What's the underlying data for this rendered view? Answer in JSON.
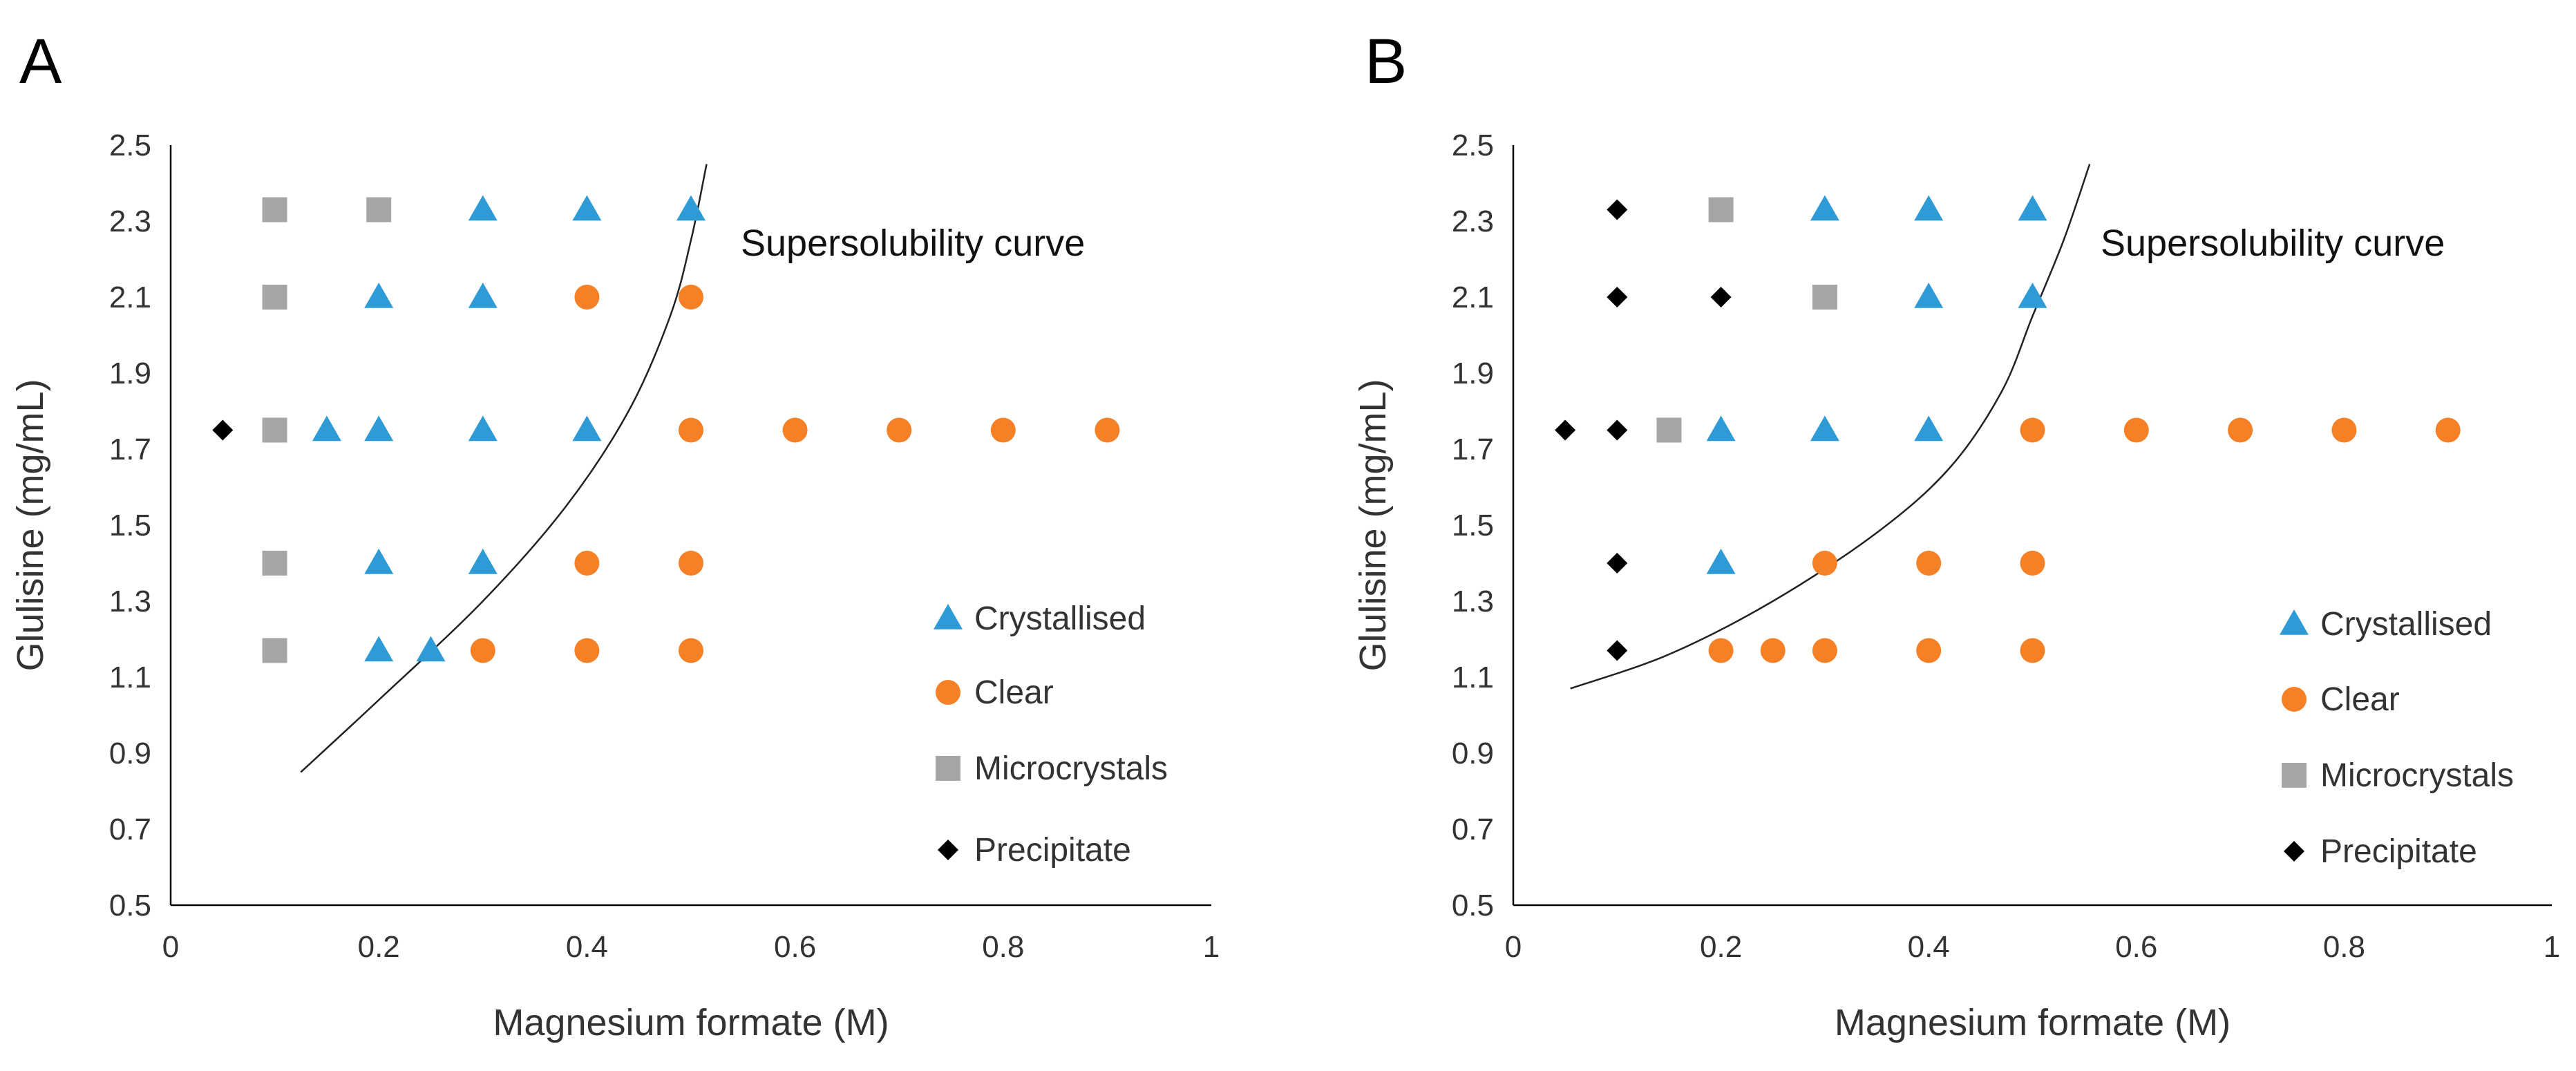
{
  "chart_data": [
    {
      "type": "scatter",
      "panel_label": "A",
      "xlabel": "Magnesium formate (M)",
      "ylabel": "Glulisine (mg/mL)",
      "xlim": [
        0,
        1
      ],
      "ylim": [
        0.5,
        2.5
      ],
      "x_ticks": [
        0,
        0.2,
        0.4,
        0.6,
        0.8,
        1
      ],
      "x_tick_labels": [
        "0",
        "0.2",
        "0.4",
        "0.6",
        "0.8",
        "1"
      ],
      "y_ticks": [
        0.5,
        0.7,
        0.9,
        1.1,
        1.3,
        1.5,
        1.7,
        1.9,
        2.1,
        2.3,
        2.5
      ],
      "y_tick_labels": [
        "0.5",
        "0.7",
        "0.9",
        "1.1",
        "1.3",
        "1.5",
        "1.7",
        "1.9",
        "2.1",
        "2.3",
        "2.5"
      ],
      "legend_position": "right",
      "series": [
        {
          "name": "Crystallised",
          "marker": "triangle",
          "color": "#2e9bd6",
          "points": [
            [
              0.3,
              2.33
            ],
            [
              0.4,
              2.33
            ],
            [
              0.5,
              2.33
            ],
            [
              0.2,
              2.1
            ],
            [
              0.3,
              2.1
            ],
            [
              0.15,
              1.75
            ],
            [
              0.2,
              1.75
            ],
            [
              0.3,
              1.75
            ],
            [
              0.4,
              1.75
            ],
            [
              0.2,
              1.4
            ],
            [
              0.3,
              1.4
            ],
            [
              0.2,
              1.17
            ],
            [
              0.25,
              1.17
            ]
          ]
        },
        {
          "name": "Clear",
          "marker": "circle",
          "color": "#f58025",
          "points": [
            [
              0.4,
              2.1
            ],
            [
              0.5,
              2.1
            ],
            [
              0.5,
              1.75
            ],
            [
              0.6,
              1.75
            ],
            [
              0.7,
              1.75
            ],
            [
              0.8,
              1.75
            ],
            [
              0.9,
              1.75
            ],
            [
              0.4,
              1.4
            ],
            [
              0.5,
              1.4
            ],
            [
              0.3,
              1.17
            ],
            [
              0.4,
              1.17
            ],
            [
              0.5,
              1.17
            ]
          ]
        },
        {
          "name": "Microcrystals",
          "marker": "square",
          "color": "#a6a6a6",
          "points": [
            [
              0.1,
              2.33
            ],
            [
              0.2,
              2.33
            ],
            [
              0.1,
              2.1
            ],
            [
              0.1,
              1.75
            ],
            [
              0.1,
              1.4
            ],
            [
              0.1,
              1.17
            ]
          ]
        },
        {
          "name": "Precipitate",
          "marker": "diamond",
          "color": "#000000",
          "points": [
            [
              0.05,
              1.75
            ]
          ]
        }
      ],
      "curve": {
        "label": "Supersolubility curve",
        "points": [
          [
            0.125,
            0.85
          ],
          [
            0.2,
            1.04
          ],
          [
            0.3,
            1.3
          ],
          [
            0.38,
            1.55
          ],
          [
            0.44,
            1.8
          ],
          [
            0.48,
            2.05
          ],
          [
            0.5,
            2.25
          ],
          [
            0.515,
            2.45
          ]
        ]
      }
    },
    {
      "type": "scatter",
      "panel_label": "B",
      "xlabel": "Magnesium formate (M)",
      "ylabel": "Glulisine (mg/mL)",
      "xlim": [
        0,
        1
      ],
      "ylim": [
        0.5,
        2.5
      ],
      "x_ticks": [
        0,
        0.2,
        0.4,
        0.6,
        0.8,
        1
      ],
      "x_tick_labels": [
        "0",
        "0.2",
        "0.4",
        "0.6",
        "0.8",
        "1"
      ],
      "y_ticks": [
        0.5,
        0.7,
        0.9,
        1.1,
        1.3,
        1.5,
        1.7,
        1.9,
        2.1,
        2.3,
        2.5
      ],
      "y_tick_labels": [
        "0.5",
        "0.7",
        "0.9",
        "1.1",
        "1.3",
        "1.5",
        "1.7",
        "1.9",
        "2.1",
        "2.3",
        "2.5"
      ],
      "legend_position": "right",
      "series": [
        {
          "name": "Crystallised",
          "marker": "triangle",
          "color": "#2e9bd6",
          "points": [
            [
              0.3,
              2.33
            ],
            [
              0.4,
              2.33
            ],
            [
              0.5,
              2.33
            ],
            [
              0.4,
              2.1
            ],
            [
              0.5,
              2.1
            ],
            [
              0.2,
              1.75
            ],
            [
              0.3,
              1.75
            ],
            [
              0.4,
              1.75
            ],
            [
              0.2,
              1.4
            ]
          ]
        },
        {
          "name": "Clear",
          "marker": "circle",
          "color": "#f58025",
          "points": [
            [
              0.5,
              1.75
            ],
            [
              0.6,
              1.75
            ],
            [
              0.7,
              1.75
            ],
            [
              0.8,
              1.75
            ],
            [
              0.9,
              1.75
            ],
            [
              0.3,
              1.4
            ],
            [
              0.4,
              1.4
            ],
            [
              0.5,
              1.4
            ],
            [
              0.2,
              1.17
            ],
            [
              0.25,
              1.17
            ],
            [
              0.3,
              1.17
            ],
            [
              0.4,
              1.17
            ],
            [
              0.5,
              1.17
            ]
          ]
        },
        {
          "name": "Microcrystals",
          "marker": "square",
          "color": "#a6a6a6",
          "points": [
            [
              0.2,
              2.33
            ],
            [
              0.3,
              2.1
            ],
            [
              0.15,
              1.75
            ]
          ]
        },
        {
          "name": "Precipitate",
          "marker": "diamond",
          "color": "#000000",
          "points": [
            [
              0.1,
              2.33
            ],
            [
              0.1,
              2.1
            ],
            [
              0.2,
              2.1
            ],
            [
              0.05,
              1.75
            ],
            [
              0.1,
              1.75
            ],
            [
              0.1,
              1.4
            ],
            [
              0.1,
              1.17
            ]
          ]
        }
      ],
      "curve": {
        "label": "Supersolubility curve",
        "points": [
          [
            0.055,
            1.07
          ],
          [
            0.15,
            1.16
          ],
          [
            0.25,
            1.3
          ],
          [
            0.35,
            1.48
          ],
          [
            0.42,
            1.65
          ],
          [
            0.47,
            1.85
          ],
          [
            0.5,
            2.05
          ],
          [
            0.53,
            2.25
          ],
          [
            0.555,
            2.45
          ]
        ]
      }
    }
  ]
}
